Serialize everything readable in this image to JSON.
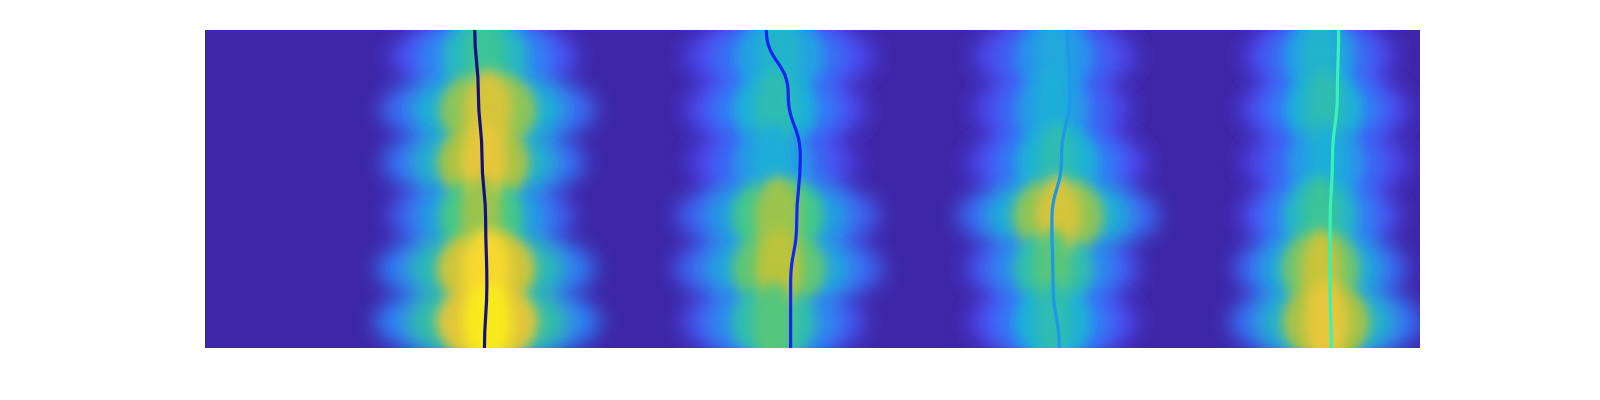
{
  "chart_data": {
    "type": "heatmap",
    "title": "",
    "xlabel": "",
    "ylabel": "",
    "axes_visible": false,
    "grid": false,
    "legend": "none",
    "colormap": "parula",
    "colormap_stops": [
      "#3e26a8",
      "#4d47f0",
      "#2f81f8",
      "#1cb1d6",
      "#3fc78d",
      "#b8c33a",
      "#f7c83a",
      "#f9fb0e"
    ],
    "ylim": [
      0,
      1
    ],
    "xlim": [
      0,
      1
    ],
    "bands": [
      {
        "center": 0.23,
        "width": 0.18,
        "intensity": [
          0.55,
          0.78,
          0.82,
          0.68,
          0.9,
          0.95
        ]
      },
      {
        "center": 0.47,
        "width": 0.18,
        "intensity": [
          0.45,
          0.5,
          0.42,
          0.68,
          0.72,
          0.6
        ]
      },
      {
        "center": 0.7,
        "width": 0.17,
        "intensity": [
          0.4,
          0.42,
          0.5,
          0.78,
          0.6,
          0.5
        ]
      },
      {
        "center": 0.92,
        "width": 0.16,
        "intensity": [
          0.45,
          0.5,
          0.42,
          0.55,
          0.75,
          0.82
        ]
      }
    ],
    "series": [
      {
        "color": "#14127a",
        "x": [
          0.222,
          0.225,
          0.228,
          0.231,
          0.232,
          0.23
        ],
        "y": [
          1.0,
          0.8,
          0.6,
          0.4,
          0.2,
          0.0
        ]
      },
      {
        "color": "#1626f0",
        "x": [
          0.462,
          0.48,
          0.49,
          0.487,
          0.482,
          0.482
        ],
        "y": [
          1.0,
          0.8,
          0.6,
          0.4,
          0.2,
          0.0
        ]
      },
      {
        "color": "#1d97e6",
        "x": [
          0.71,
          0.712,
          0.705,
          0.697,
          0.698,
          0.703
        ],
        "y": [
          1.0,
          0.8,
          0.6,
          0.4,
          0.2,
          0.0
        ]
      },
      {
        "color": "#3af2b5",
        "x": [
          0.933,
          0.932,
          0.928,
          0.926,
          0.926,
          0.927
        ],
        "y": [
          1.0,
          0.8,
          0.6,
          0.4,
          0.2,
          0.0
        ]
      }
    ]
  }
}
